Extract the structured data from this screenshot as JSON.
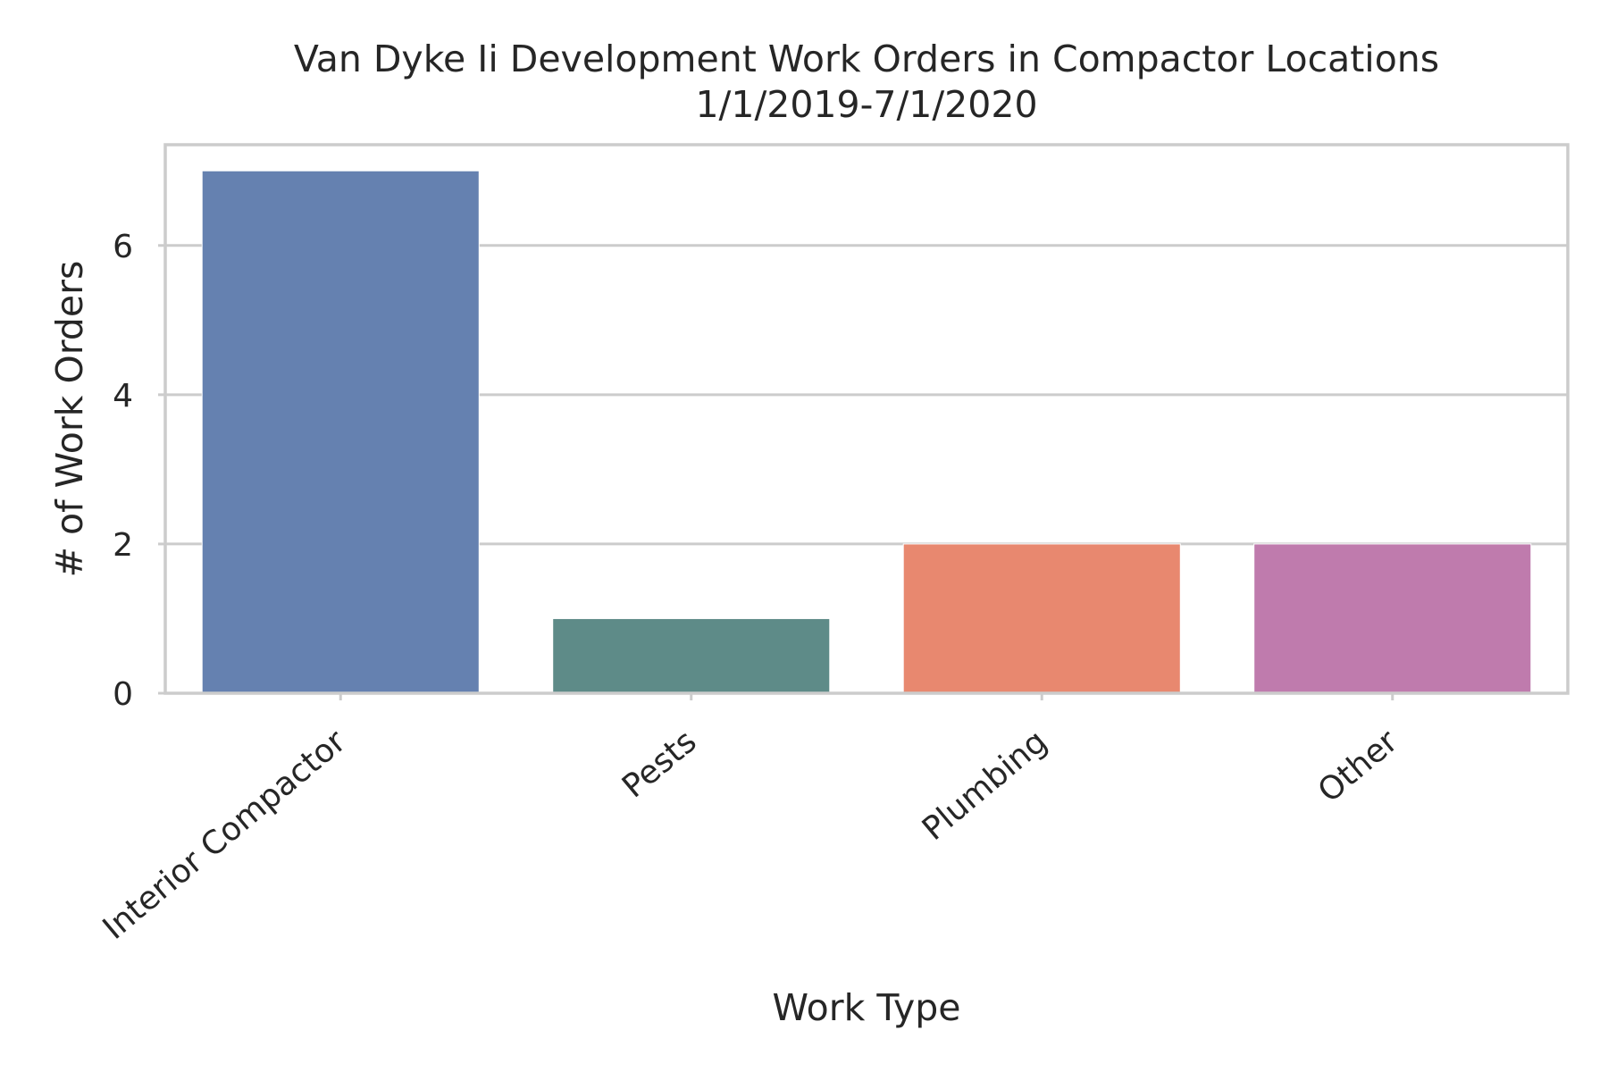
{
  "chart_data": {
    "type": "bar",
    "title_lines": [
      "Van Dyke Ii Development Work Orders in Compactor Locations",
      "1/1/2019-7/1/2020"
    ],
    "xlabel": "Work Type",
    "ylabel": "# of Work Orders",
    "categories": [
      "Interior Compactor",
      "Pests",
      "Plumbing",
      "Other"
    ],
    "values": [
      7,
      1,
      2,
      2
    ],
    "colors": [
      "#6581b0",
      "#5e8b88",
      "#e8886f",
      "#bf7bad"
    ],
    "ylim": [
      0,
      7.35
    ],
    "yticks": [
      0,
      2,
      4,
      6
    ],
    "grid": true
  }
}
